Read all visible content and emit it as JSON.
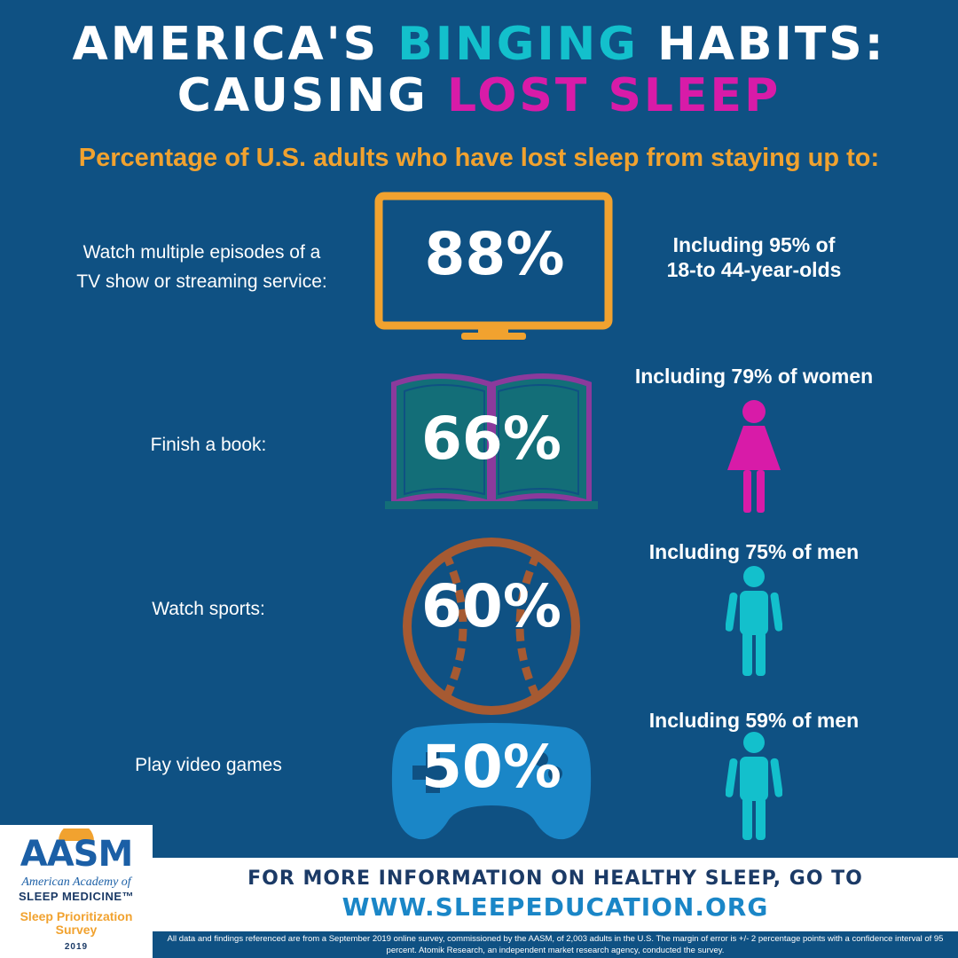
{
  "title": {
    "line1_a": "AMERICA'S ",
    "line1_b": "BINGING",
    "line1_c": "  HABITS:",
    "line2_a": "CAUSING ",
    "line2_b": "LOST SLEEP"
  },
  "subtitle": "Percentage of U.S. adults who have lost sleep from staying up to:",
  "items": [
    {
      "label_line1": "Watch multiple episodes of a",
      "label_line2": "TV show or streaming service:",
      "value": "88%",
      "icon": "tv-monitor-icon",
      "detail_line1": "Including 95% of",
      "detail_line2": "18-to 44-year-olds"
    },
    {
      "label_line1": "Finish a book:",
      "value": "66%",
      "icon": "open-book-icon",
      "detail_line1": "Including 79% of women",
      "person_icon": "woman-icon"
    },
    {
      "label_line1": "Watch sports:",
      "value": "60%",
      "icon": "baseball-icon",
      "detail_line1": "Including 75% of men",
      "person_icon": "man-icon"
    },
    {
      "label_line1": "Play video games",
      "value": "50%",
      "icon": "game-controller-icon",
      "detail_line1": "Including 59% of men",
      "person_icon": "man-icon"
    }
  ],
  "footer": {
    "line1": "FOR MORE INFORMATION ON HEALTHY SLEEP, GO TO",
    "url": "WWW.SLEEPEDUCATION.ORG",
    "disclaimer": "All data and findings referenced are from a September 2019 online survey, commissioned by the AASM, of 2,003 adults in the U.S. The margin of error is +/- 2 percentage points with a confidence interval of 95 percent. Atomik Research, an independent market research agency, conducted the survey."
  },
  "logo": {
    "name": "AASM",
    "line1": "American Academy of",
    "line2": "SLEEP MEDICINE™",
    "line3": "Sleep Prioritization Survey",
    "year": "2019"
  },
  "colors": {
    "background": "#0f5183",
    "teal": "#13c0cc",
    "magenta": "#d81ba8",
    "orange": "#f1a22f",
    "purple": "#8b3a9c",
    "book_teal": "#136e78",
    "brown": "#a65a32",
    "controller_blue": "#1a86c7"
  }
}
